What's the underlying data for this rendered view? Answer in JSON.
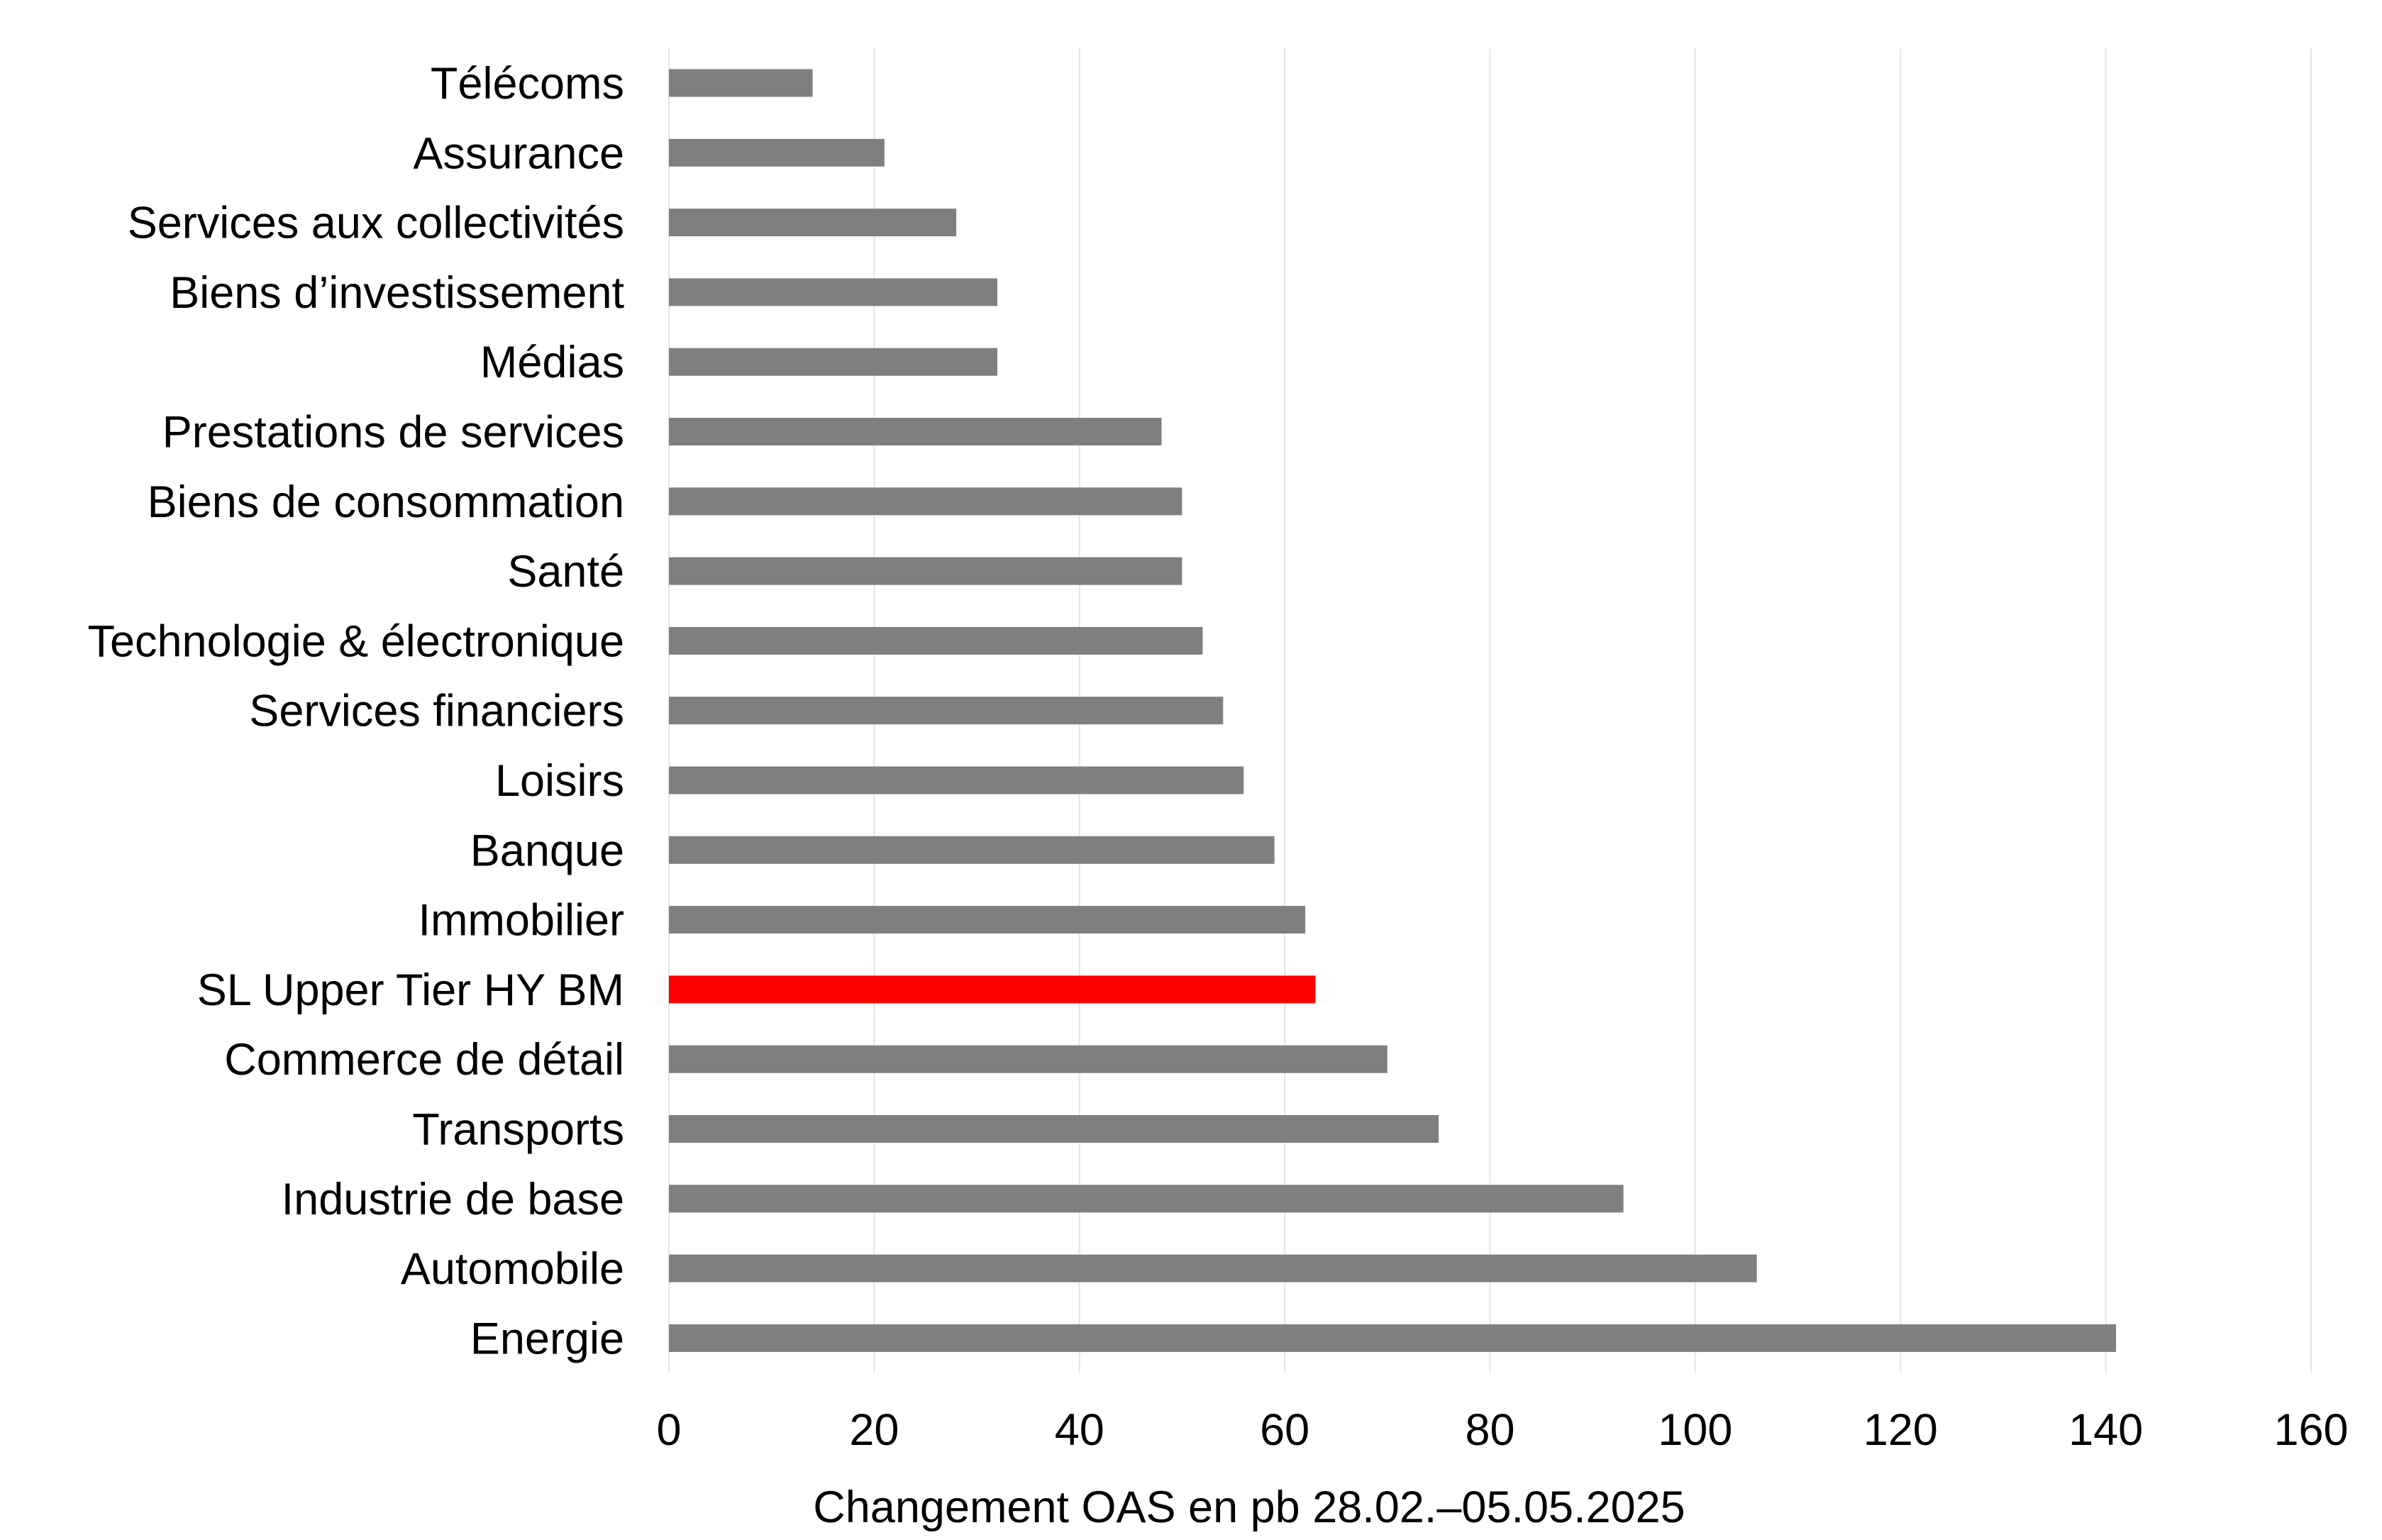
{
  "chart_data": {
    "type": "bar",
    "orientation": "horizontal",
    "categories": [
      "Télécoms",
      "Assurance",
      "Services aux collectivités",
      "Biens d’investissement",
      "Médias",
      "Prestations de services",
      "Biens de consommation",
      "Santé",
      "Technologie & électronique",
      "Services financiers",
      "Loisirs",
      "Banque",
      "Immobilier",
      "SL Upper Tier HY BM",
      "Commerce de détail",
      "Transports",
      "Industrie de base",
      "Automobile",
      "Energie"
    ],
    "values": [
      14,
      21,
      28,
      32,
      32,
      48,
      50,
      50,
      52,
      54,
      56,
      59,
      62,
      63,
      70,
      75,
      93,
      106,
      141
    ],
    "highlight_index": 13,
    "colors": {
      "bar": "#7f7f7f",
      "highlight": "#ff0000",
      "grid": "#e4e4ee"
    },
    "xlim": [
      0,
      160
    ],
    "xticks": [
      0,
      20,
      40,
      60,
      80,
      100,
      120,
      140,
      160
    ],
    "xlabel": "Changement OAS en pb 28.02.–05.05.2025",
    "ylabel": "",
    "title": "",
    "grid": "vertical",
    "legend": "none"
  }
}
